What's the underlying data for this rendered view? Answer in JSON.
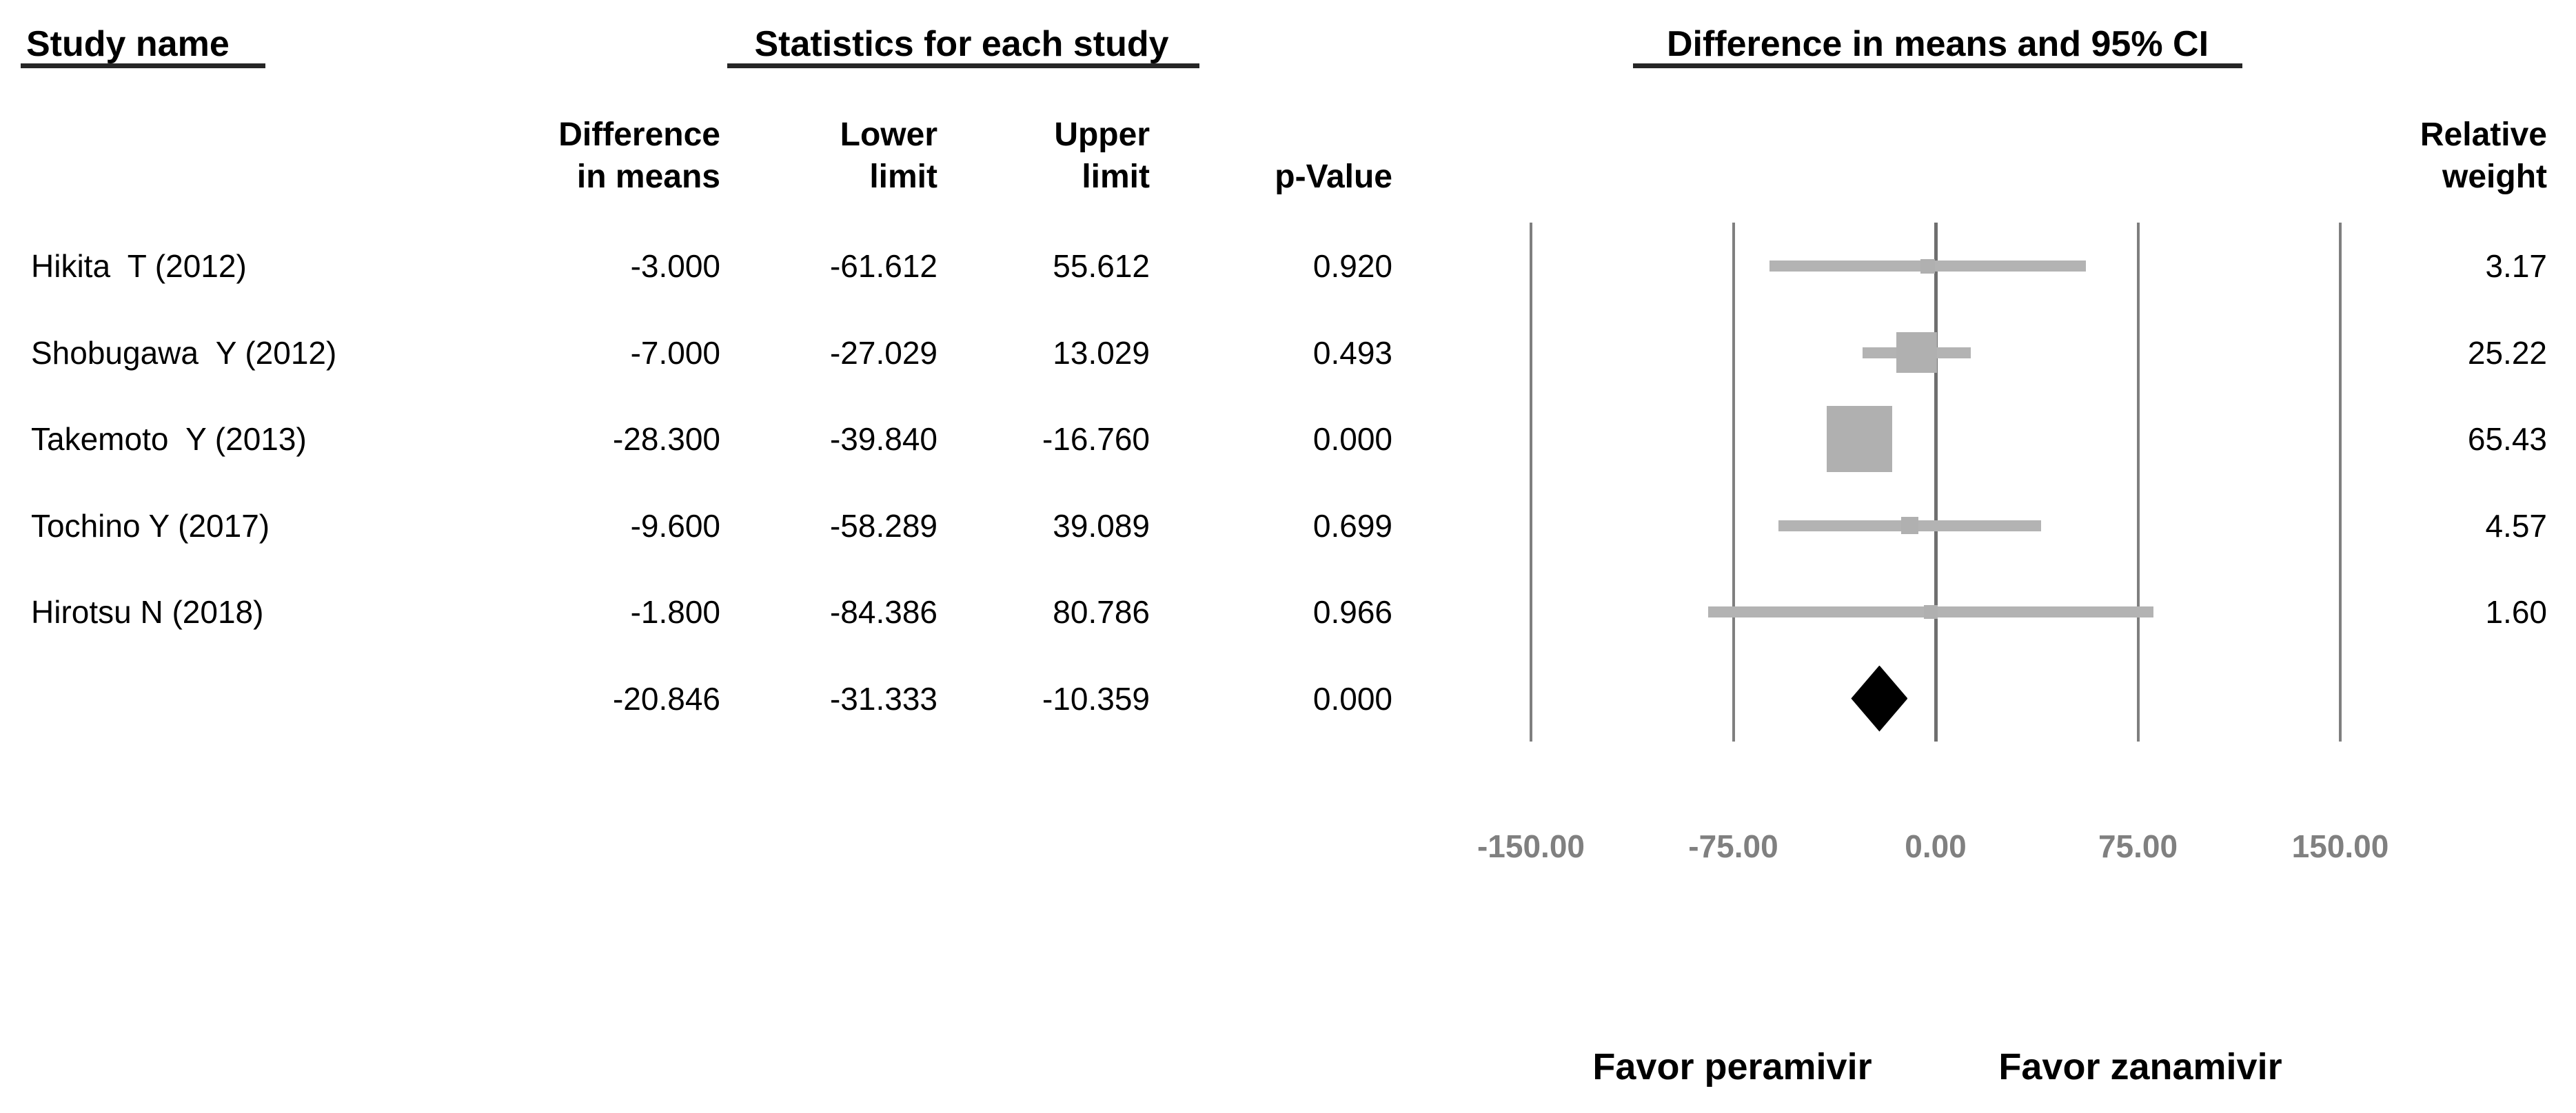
{
  "titles": {
    "study_col": "Study name",
    "stats_col": "Statistics for each study",
    "plot_col": "Difference in means and 95% CI"
  },
  "column_headers": {
    "diff": "Difference\nin means",
    "lower": "Lower\nlimit",
    "upper": "Upper\nlimit",
    "p_value": "p-Value",
    "weight": "Relative\nweight"
  },
  "chart_data": {
    "type": "forest",
    "title": "Difference in means and 95% CI",
    "x_axis": {
      "min": -150,
      "max": 150,
      "ticks": [
        -150,
        -75,
        0,
        75,
        150
      ],
      "tick_labels": [
        "-150.00",
        "-75.00",
        "0.00",
        "75.00",
        "150.00"
      ],
      "grid": "vertical-lines"
    },
    "studies": [
      {
        "name": "Hikita  T (2012)",
        "diff": -3.0,
        "lower": -61.612,
        "upper": 55.612,
        "p": 0.92,
        "weight": 3.17,
        "diff_str": "-3.000",
        "lower_str": "-61.612",
        "upper_str": "55.612",
        "p_str": "0.920",
        "weight_str": "3.17"
      },
      {
        "name": "Shobugawa  Y (2012)",
        "diff": -7.0,
        "lower": -27.029,
        "upper": 13.029,
        "p": 0.493,
        "weight": 25.22,
        "diff_str": "-7.000",
        "lower_str": "-27.029",
        "upper_str": "13.029",
        "p_str": "0.493",
        "weight_str": "25.22"
      },
      {
        "name": "Takemoto  Y (2013)",
        "diff": -28.3,
        "lower": -39.84,
        "upper": -16.76,
        "p": 0.0,
        "weight": 65.43,
        "diff_str": "-28.300",
        "lower_str": "-39.840",
        "upper_str": "-16.760",
        "p_str": "0.000",
        "weight_str": "65.43"
      },
      {
        "name": "Tochino Y (2017)",
        "diff": -9.6,
        "lower": -58.289,
        "upper": 39.089,
        "p": 0.699,
        "weight": 4.57,
        "diff_str": "-9.600",
        "lower_str": "-58.289",
        "upper_str": "39.089",
        "p_str": "0.699",
        "weight_str": "4.57"
      },
      {
        "name": "Hirotsu N (2018)",
        "diff": -1.8,
        "lower": -84.386,
        "upper": 80.786,
        "p": 0.966,
        "weight": 1.6,
        "diff_str": "-1.800",
        "lower_str": "-84.386",
        "upper_str": "80.786",
        "p_str": "0.966",
        "weight_str": "1.60"
      }
    ],
    "summary": {
      "diff": -20.846,
      "lower": -31.333,
      "upper": -10.359,
      "p": 0.0,
      "diff_str": "-20.846",
      "lower_str": "-31.333",
      "upper_str": "-10.359",
      "p_str": "0.000"
    },
    "footer_labels": {
      "left": "Favor peramivir",
      "right": "Favor zanamivir"
    },
    "colors": {
      "marker_gray": "#b0b0b0",
      "gridline_gray": "#7f7f7f",
      "tick_gray": "#808080",
      "summary_diamond": "#000000"
    }
  }
}
